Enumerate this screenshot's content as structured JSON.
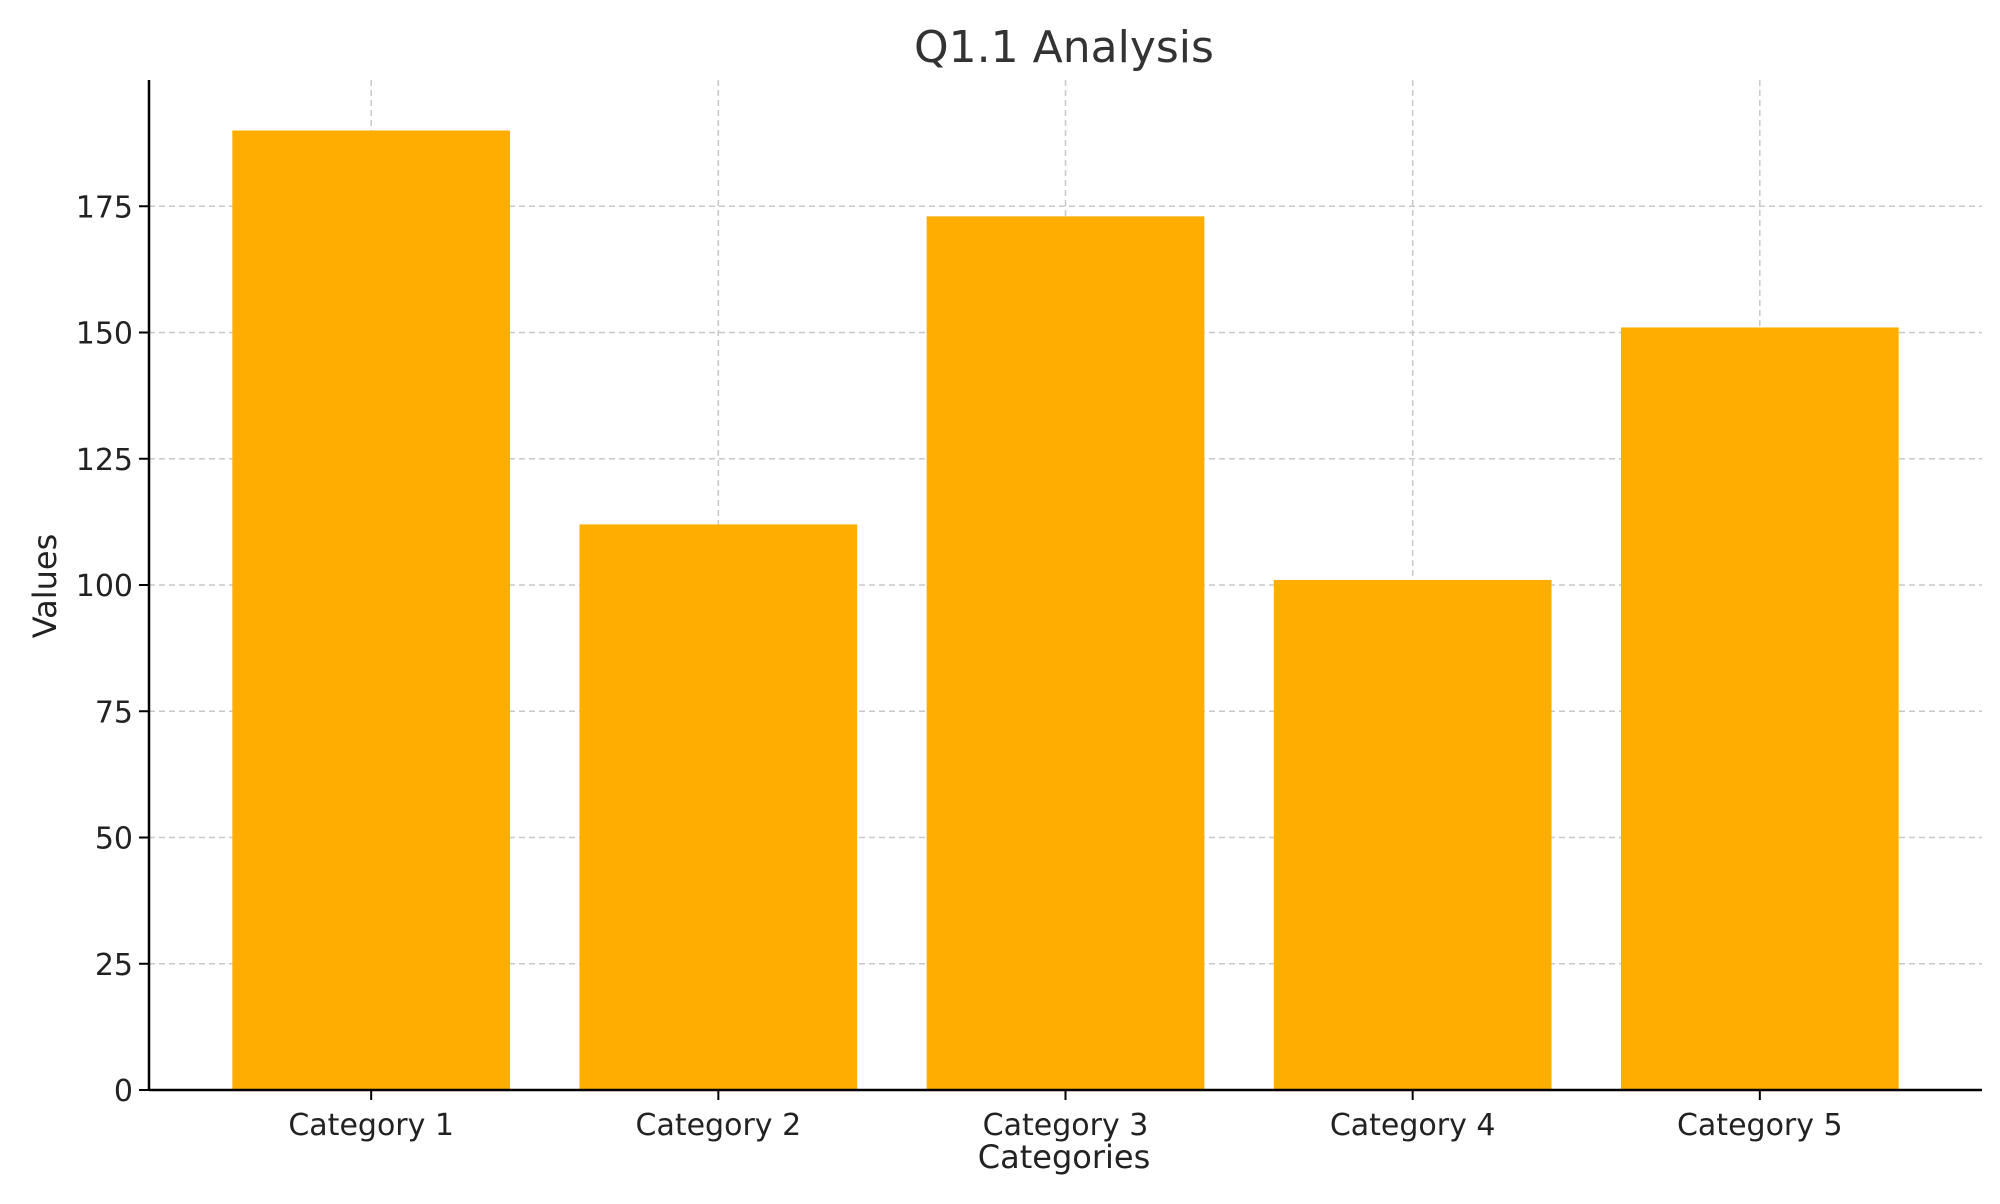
{
  "chart_data": {
    "type": "bar",
    "title": "Q1.1 Analysis",
    "xlabel": "Categories",
    "ylabel": "Values",
    "categories": [
      "Category 1",
      "Category 2",
      "Category 3",
      "Category 4",
      "Category 5"
    ],
    "values": [
      190,
      112,
      173,
      101,
      151
    ],
    "ylim": [
      0,
      200
    ],
    "yticks": [
      0,
      25,
      50,
      75,
      100,
      125,
      150,
      175
    ],
    "grid": true,
    "bar_color": "#FFAE00",
    "grid_color": "#c8c8c8",
    "axis_color": "#000000"
  }
}
